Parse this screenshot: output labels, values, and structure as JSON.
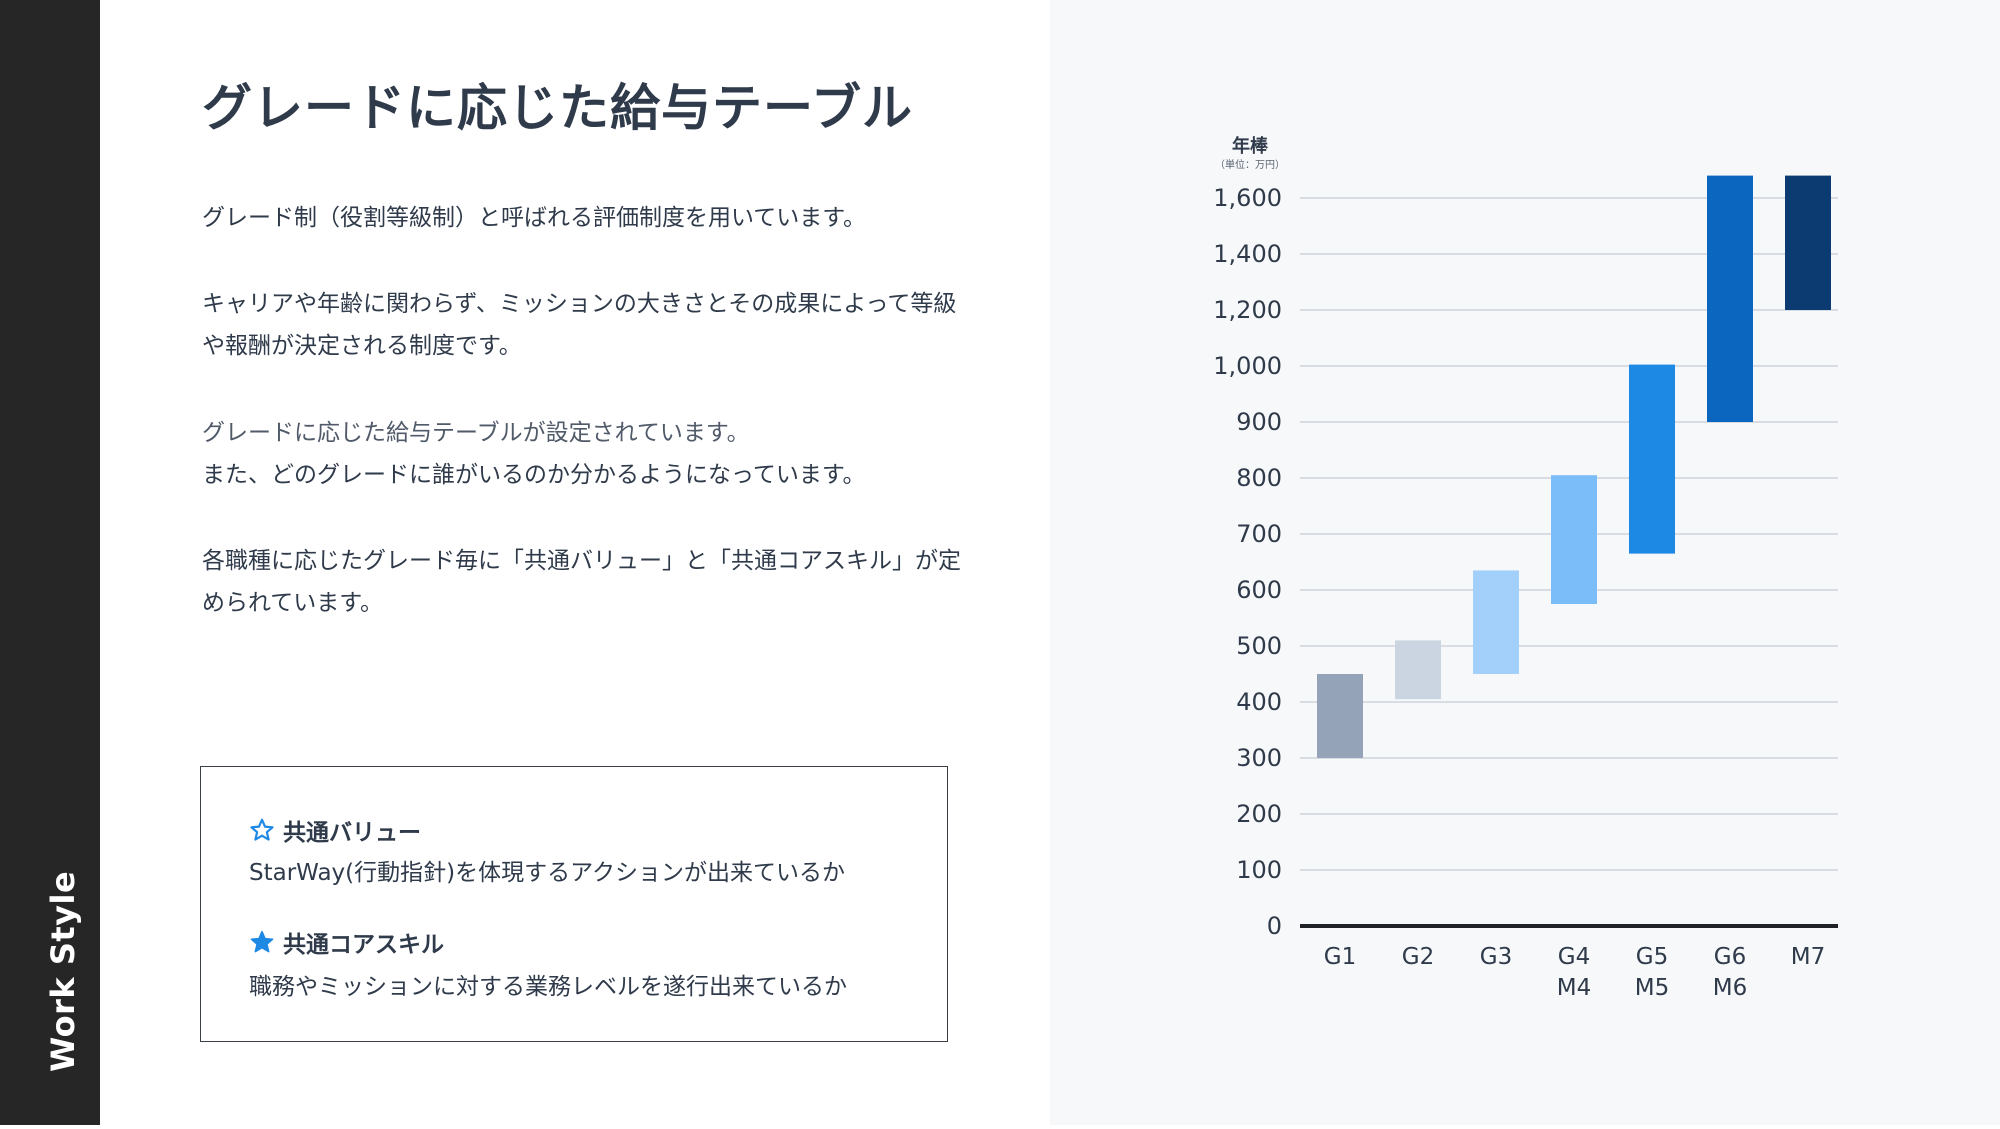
{
  "sidebar": {
    "label": "Work Style"
  },
  "page": {
    "title": "グレードに応じた給与テーブル",
    "paragraphs": [
      "グレード制（役割等級制）と呼ばれる評価制度を用いています。",
      "キャリアや年齢に関わらず、ミッションの大きさとその成果によって等級や報酬が決定される制度です。",
      "グレードに応じた給与テーブルが設定されています。",
      "また、どのグレードに誰がいるのか分かるようになっています。",
      "各職種に応じたグレード毎に「共通バリュー」と「共通コアスキル」が定められています。"
    ]
  },
  "info_box": {
    "items": [
      {
        "icon": "star-outline-icon",
        "heading": "共通バリュー",
        "description": "StarWay(行動指針)を体現するアクションが出来ているか"
      },
      {
        "icon": "star-filled-icon",
        "heading": "共通コアスキル",
        "description": "職務やミッションに対する業務レベルを遂行出来ているか"
      }
    ],
    "icon_color": "#1e88e5"
  },
  "chart_data": {
    "type": "bar",
    "title": "年棒",
    "unit_note": "（単位：万円）",
    "categories": [
      "G1",
      "G2",
      "G3",
      "G4\nM4",
      "G5\nM5",
      "G6\nM6",
      "M7"
    ],
    "ranges": [
      [
        300,
        450
      ],
      [
        405,
        510
      ],
      [
        450,
        635
      ],
      [
        575,
        805
      ],
      [
        665,
        1005
      ],
      [
        900,
        1680
      ],
      [
        1200,
        1680
      ]
    ],
    "colors": [
      "#94a3b8",
      "#cbd5e1",
      "#a3d0fb",
      "#7bbdf9",
      "#1e88e5",
      "#0b66bf",
      "#0b3b70"
    ],
    "y_ticks": [
      0,
      100,
      200,
      300,
      400,
      500,
      600,
      700,
      800,
      900,
      1000,
      1200,
      1400,
      1600
    ],
    "y_tick_labels": [
      "0",
      "100",
      "200",
      "300",
      "400",
      "500",
      "600",
      "700",
      "800",
      "900",
      "1,000",
      "1,200",
      "1,400",
      "1,600"
    ],
    "y_scale": "piecewise: 100-step to 1,000, 200-step above",
    "grid": true
  }
}
